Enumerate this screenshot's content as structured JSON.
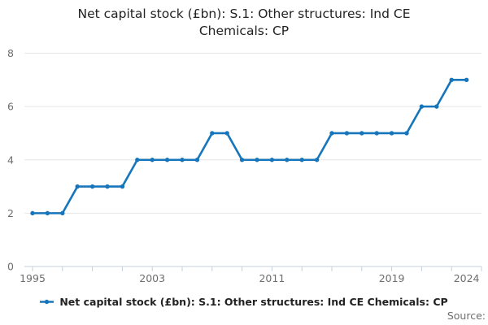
{
  "title": "Net capital stock (£bn): S.1: Other structures: Ind CE Chemicals: CP",
  "legend": {
    "label": "Net capital stock (£bn): S.1: Other structures: Ind CE Chemicals: CP"
  },
  "source": {
    "label": "Source:"
  },
  "colors": {
    "line": "#1776bb",
    "grid": "#e6e6e6",
    "axis": "#c6d0de",
    "tick_text": "#6e6e6e",
    "title_text": "#222222"
  },
  "chart_data": {
    "type": "line",
    "title": "Net capital stock (£bn): S.1: Other structures: Ind CE Chemicals: CP",
    "series_name": "Net capital stock (£bn): S.1: Other structures: Ind CE Chemicals: CP",
    "x": [
      1995,
      1996,
      1997,
      1998,
      1999,
      2000,
      2001,
      2002,
      2003,
      2004,
      2005,
      2006,
      2007,
      2008,
      2009,
      2010,
      2011,
      2012,
      2013,
      2014,
      2015,
      2016,
      2017,
      2018,
      2019,
      2020,
      2021,
      2022,
      2023,
      2024
    ],
    "values": [
      2,
      2,
      2,
      3,
      3,
      3,
      3,
      4,
      4,
      4,
      4,
      4,
      5,
      5,
      4,
      4,
      4,
      4,
      4,
      4,
      5,
      5,
      5,
      5,
      5,
      5,
      6,
      6,
      7,
      7
    ],
    "xlabel": "",
    "ylabel": "",
    "ylim": [
      0,
      8
    ],
    "yticks": [
      0,
      2,
      4,
      6,
      8
    ],
    "xtick_labels": [
      "1995",
      "2003",
      "2011",
      "2019",
      "2024"
    ],
    "minor_tick_interval_years": 2,
    "grid": "horizontal",
    "legend_position": "bottom",
    "marker": "circle",
    "line_color": "#1776bb",
    "grid_color": "#e6e6e6",
    "axis_color": "#c6d0de"
  }
}
